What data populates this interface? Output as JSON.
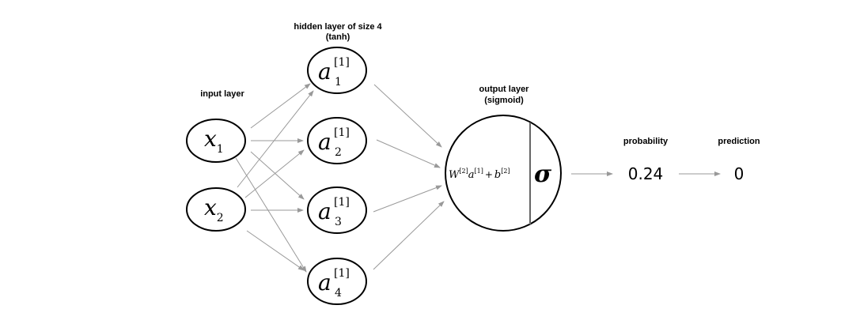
{
  "labels": {
    "hidden_title": "hidden layer of size 4",
    "hidden_activation": "(tanh)",
    "input_title": "input layer",
    "output_title": "output layer",
    "output_activation": "(sigmoid)",
    "probability_title": "probability",
    "prediction_title": "prediction"
  },
  "inputs": [
    {
      "base": "x",
      "sub": "1"
    },
    {
      "base": "x",
      "sub": "2"
    }
  ],
  "hidden": [
    {
      "base": "a",
      "sup": "[1]",
      "sub": "1"
    },
    {
      "base": "a",
      "sup": "[1]",
      "sub": "2"
    },
    {
      "base": "a",
      "sup": "[1]",
      "sub": "3"
    },
    {
      "base": "a",
      "sup": "[1]",
      "sub": "4"
    }
  ],
  "output": {
    "w": "W",
    "w_sup": "[2]",
    "a": "a",
    "a_sup": "[1]",
    "plus": "+",
    "b": "b",
    "b_sup": "[2]",
    "sigma": "σ"
  },
  "results": {
    "probability": "0.24",
    "prediction": "0"
  },
  "colors": {
    "edge": "#999999",
    "node_stroke": "#000000"
  }
}
